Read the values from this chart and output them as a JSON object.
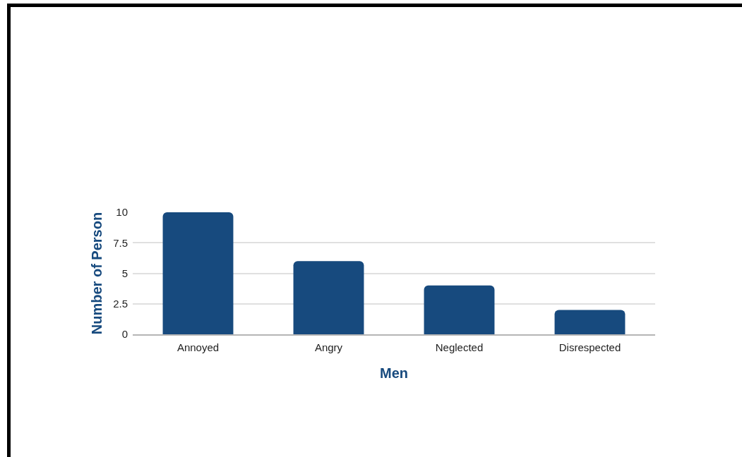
{
  "chart_data": {
    "type": "bar",
    "xlabel": "Men",
    "ylabel": "Number of Person",
    "categories": [
      "Annoyed",
      "Angry",
      "Neglected",
      "Disrespected"
    ],
    "values": [
      10,
      6,
      4,
      2
    ],
    "color": "#174a7e",
    "ylim": [
      0,
      10
    ],
    "yticks": [
      0,
      2.5,
      5,
      7.5,
      10
    ],
    "grid": "y"
  }
}
